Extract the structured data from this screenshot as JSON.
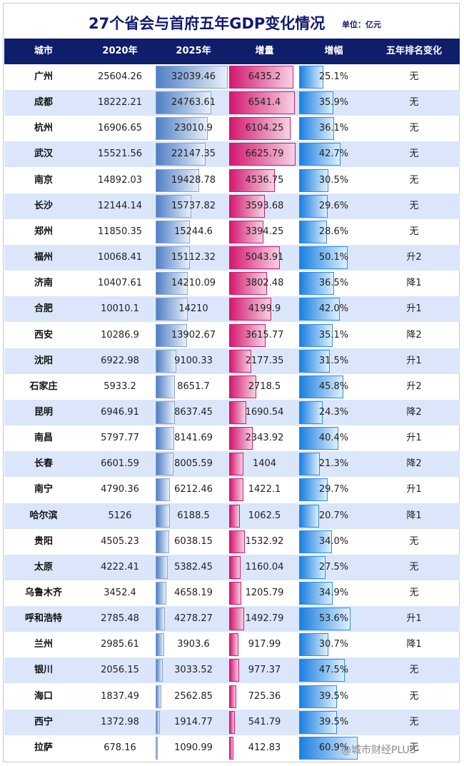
{
  "title": "27个省会与首府五年GDP变化情况",
  "unit": "单位：亿元",
  "headers": [
    "城市",
    "2020年",
    "2025年",
    "增量",
    "增幅",
    "五年排名变化"
  ],
  "rows": [
    {
      "city": "广州",
      "gdp2020": "25604.26",
      "gdp2025": "32039.46",
      "increase": "6435.2",
      "growth": "25.1%",
      "rank_change": "无"
    },
    {
      "city": "成都",
      "gdp2020": "18222.21",
      "gdp2025": "24763.61",
      "increase": "6541.4",
      "growth": "35.9%",
      "rank_change": "无"
    },
    {
      "city": "杭州",
      "gdp2020": "16906.65",
      "gdp2025": "23010.9",
      "increase": "6104.25",
      "growth": "36.1%",
      "rank_change": "无"
    },
    {
      "city": "武汉",
      "gdp2020": "15521.56",
      "gdp2025": "22147.35",
      "increase": "6625.79",
      "growth": "42.7%",
      "rank_change": "无"
    },
    {
      "city": "南京",
      "gdp2020": "14892.03",
      "gdp2025": "19428.78",
      "increase": "4536.75",
      "growth": "30.5%",
      "rank_change": "无"
    },
    {
      "city": "长沙",
      "gdp2020": "12144.14",
      "gdp2025": "15737.82",
      "increase": "3593.68",
      "growth": "29.6%",
      "rank_change": "无"
    },
    {
      "city": "郑州",
      "gdp2020": "11850.35",
      "gdp2025": "15244.6",
      "increase": "3394.25",
      "growth": "28.6%",
      "rank_change": "无"
    },
    {
      "city": "福州",
      "gdp2020": "10068.41",
      "gdp2025": "15112.32",
      "increase": "5043.91",
      "growth": "50.1%",
      "rank_change": "升2"
    },
    {
      "city": "济南",
      "gdp2020": "10407.61",
      "gdp2025": "14210.09",
      "increase": "3802.48",
      "growth": "36.5%",
      "rank_change": "降1"
    },
    {
      "city": "合肥",
      "gdp2020": "10010.1",
      "gdp2025": "14210",
      "increase": "4199.9",
      "growth": "42.0%",
      "rank_change": "升1"
    },
    {
      "city": "西安",
      "gdp2020": "10286.9",
      "gdp2025": "13902.67",
      "increase": "3615.77",
      "growth": "35.1%",
      "rank_change": "降2"
    },
    {
      "city": "沈阳",
      "gdp2020": "6922.98",
      "gdp2025": "9100.33",
      "increase": "2177.35",
      "growth": "31.5%",
      "rank_change": "升1"
    },
    {
      "city": "石家庄",
      "gdp2020": "5933.2",
      "gdp2025": "8651.7",
      "increase": "2718.5",
      "growth": "45.8%",
      "rank_change": "升2"
    },
    {
      "city": "昆明",
      "gdp2020": "6946.91",
      "gdp2025": "8637.45",
      "increase": "1690.54",
      "growth": "24.3%",
      "rank_change": "降2"
    },
    {
      "city": "南昌",
      "gdp2020": "5797.77",
      "gdp2025": "8141.69",
      "increase": "2343.92",
      "growth": "40.4%",
      "rank_change": "升1"
    },
    {
      "city": "长春",
      "gdp2020": "6601.59",
      "gdp2025": "8005.59",
      "increase": "1404",
      "growth": "21.3%",
      "rank_change": "降2"
    },
    {
      "city": "南宁",
      "gdp2020": "4790.36",
      "gdp2025": "6212.46",
      "increase": "1422.1",
      "growth": "29.7%",
      "rank_change": "升1"
    },
    {
      "city": "哈尔滨",
      "gdp2020": "5126",
      "gdp2025": "6188.5",
      "increase": "1062.5",
      "growth": "20.7%",
      "rank_change": "降1"
    },
    {
      "city": "贵阳",
      "gdp2020": "4505.23",
      "gdp2025": "6038.15",
      "increase": "1532.92",
      "growth": "34.0%",
      "rank_change": "无"
    },
    {
      "city": "太原",
      "gdp2020": "4222.41",
      "gdp2025": "5382.45",
      "increase": "1160.04",
      "growth": "27.5%",
      "rank_change": "无"
    },
    {
      "city": "乌鲁木齐",
      "gdp2020": "3452.4",
      "gdp2025": "4658.19",
      "increase": "1205.79",
      "growth": "34.9%",
      "rank_change": "无"
    },
    {
      "city": "呼和浩特",
      "gdp2020": "2785.48",
      "gdp2025": "4278.27",
      "increase": "1492.79",
      "growth": "53.6%",
      "rank_change": "升1"
    },
    {
      "city": "兰州",
      "gdp2020": "2985.61",
      "gdp2025": "3903.6",
      "increase": "917.99",
      "growth": "30.7%",
      "rank_change": "降1"
    },
    {
      "city": "银川",
      "gdp2020": "2056.15",
      "gdp2025": "3033.52",
      "increase": "977.37",
      "growth": "47.5%",
      "rank_change": "无"
    },
    {
      "city": "海口",
      "gdp2020": "1837.49",
      "gdp2025": "2562.85",
      "increase": "725.36",
      "growth": "39.5%",
      "rank_change": "无"
    },
    {
      "city": "西宁",
      "gdp2020": "1372.98",
      "gdp2025": "1914.77",
      "increase": "541.79",
      "growth": "39.5%",
      "rank_change": "无"
    },
    {
      "city": "拉萨",
      "gdp2020": "678.16",
      "gdp2025": "1090.99",
      "increase": "412.83",
      "growth": "60.9%",
      "rank_change": "无"
    }
  ],
  "colors": {
    "header_bg": "#0f1e6a",
    "row_alt": "#dbe6fb",
    "gdp_bar": "#4f7fc4",
    "increase_bar": "#d4186f",
    "growth_bar": "#1a7fe0"
  },
  "watermark": "@城市财经PLUS"
}
